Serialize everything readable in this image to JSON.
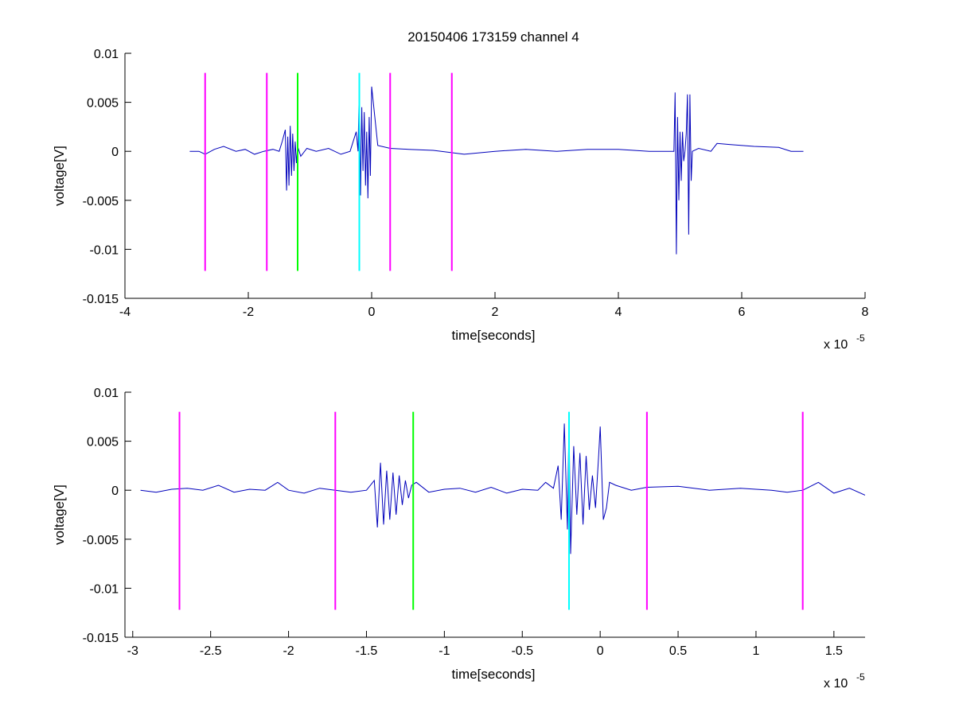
{
  "chart_data": [
    {
      "type": "line",
      "title": "20150406 173159 channel 4",
      "xlabel": "time[seconds]",
      "ylabel": "voltage[V]",
      "x_multiplier": "x 10",
      "x_exponent": "-5",
      "xlim": [
        -4,
        8
      ],
      "ylim": [
        -0.015,
        0.01
      ],
      "xticks": [
        -4,
        -2,
        0,
        2,
        4,
        6,
        8
      ],
      "xtick_labels": [
        "-4",
        "-2",
        "0",
        "2",
        "4",
        "6",
        "8"
      ],
      "yticks": [
        -0.015,
        -0.01,
        -0.005,
        0,
        0.005,
        0.01
      ],
      "ytick_labels": [
        "-0.015",
        "-0.01",
        "-0.005",
        "0",
        "0.005",
        "0.01"
      ],
      "grid": false,
      "series": [
        {
          "color": "#0000bb",
          "x": [
            -2.95,
            -2.8,
            -2.7,
            -2.55,
            -2.4,
            -2.2,
            -2.05,
            -1.9,
            -1.75,
            -1.6,
            -1.5,
            -1.45,
            -1.4,
            -1.38,
            -1.36,
            -1.34,
            -1.32,
            -1.3,
            -1.28,
            -1.26,
            -1.24,
            -1.22,
            -1.2,
            -1.15,
            -1.05,
            -0.9,
            -0.7,
            -0.5,
            -0.35,
            -0.25,
            -0.22,
            -0.2,
            -0.18,
            -0.16,
            -0.14,
            -0.12,
            -0.1,
            -0.08,
            -0.06,
            -0.04,
            -0.02,
            0.0,
            0.1,
            0.3,
            0.6,
            1.0,
            1.5,
            2.0,
            2.5,
            3.0,
            3.5,
            4.0,
            4.5,
            4.8,
            4.9,
            4.92,
            4.94,
            4.96,
            4.98,
            5.0,
            5.02,
            5.04,
            5.06,
            5.08,
            5.1,
            5.12,
            5.14,
            5.16,
            5.18,
            5.2,
            5.3,
            5.5,
            5.6,
            5.8,
            6.2,
            6.6,
            6.8,
            7.0
          ],
          "y": [
            0.0,
            0.0,
            -0.0003,
            0.0002,
            0.0005,
            0.0,
            0.0002,
            -0.0003,
            0.0,
            0.0002,
            0.0,
            0.001,
            0.0022,
            -0.004,
            0.0015,
            -0.0035,
            0.0026,
            -0.0025,
            0.0018,
            -0.002,
            0.001,
            -0.0012,
            0.0005,
            -0.0005,
            0.0003,
            0.0,
            0.0003,
            -0.0003,
            0.0,
            0.002,
            0.0,
            0.0069,
            -0.0045,
            0.0045,
            -0.002,
            0.004,
            -0.0035,
            0.002,
            -0.0048,
            0.0035,
            -0.0025,
            0.0066,
            0.0006,
            0.0003,
            0.0002,
            0.0001,
            -0.0003,
            0.0,
            0.0002,
            0.0,
            0.0002,
            0.0002,
            0.0,
            0.0,
            0.0,
            0.006,
            -0.0105,
            0.0035,
            -0.005,
            0.002,
            -0.003,
            0.002,
            -0.001,
            0.0,
            0.0018,
            0.0058,
            -0.0085,
            0.0058,
            -0.003,
            0.0,
            0.0003,
            0.0,
            0.0008,
            0.0007,
            0.0005,
            0.0004,
            0.0,
            0.0
          ]
        }
      ],
      "markers": [
        {
          "x": -2.7,
          "color": "#ff00ff"
        },
        {
          "x": -1.7,
          "color": "#ff00ff"
        },
        {
          "x": -1.2,
          "color": "#00ff00"
        },
        {
          "x": -0.2,
          "color": "#00ffff"
        },
        {
          "x": 0.3,
          "color": "#ff00ff"
        },
        {
          "x": 1.3,
          "color": "#ff00ff"
        }
      ],
      "marker_range": [
        -0.0122,
        0.008
      ]
    },
    {
      "type": "line",
      "title": "",
      "xlabel": "time[seconds]",
      "ylabel": "voltage[V]",
      "x_multiplier": "x 10",
      "x_exponent": "-5",
      "xlim": [
        -3.05,
        1.7
      ],
      "ylim": [
        -0.015,
        0.01
      ],
      "xticks": [
        -3,
        -2.5,
        -2,
        -1.5,
        -1,
        -0.5,
        0,
        0.5,
        1,
        1.5
      ],
      "xtick_labels": [
        "-3",
        "-2.5",
        "-2",
        "-1.5",
        "-1",
        "-0.5",
        "0",
        "0.5",
        "1",
        "1.5"
      ],
      "yticks": [
        -0.015,
        -0.01,
        -0.005,
        0,
        0.005,
        0.01
      ],
      "ytick_labels": [
        "-0.015",
        "-0.01",
        "-0.005",
        "0",
        "0.005",
        "0.01"
      ],
      "grid": false,
      "series": [
        {
          "color": "#0000bb",
          "x": [
            -2.95,
            -2.85,
            -2.75,
            -2.65,
            -2.55,
            -2.45,
            -2.35,
            -2.25,
            -2.15,
            -2.07,
            -2.0,
            -1.9,
            -1.8,
            -1.7,
            -1.6,
            -1.5,
            -1.45,
            -1.43,
            -1.41,
            -1.39,
            -1.37,
            -1.35,
            -1.33,
            -1.31,
            -1.29,
            -1.27,
            -1.25,
            -1.23,
            -1.21,
            -1.18,
            -1.1,
            -1.0,
            -0.9,
            -0.8,
            -0.7,
            -0.6,
            -0.5,
            -0.4,
            -0.35,
            -0.3,
            -0.27,
            -0.25,
            -0.23,
            -0.21,
            -0.2,
            -0.19,
            -0.17,
            -0.15,
            -0.13,
            -0.11,
            -0.09,
            -0.07,
            -0.05,
            -0.03,
            -0.01,
            0.0,
            0.02,
            0.04,
            0.06,
            0.1,
            0.2,
            0.3,
            0.5,
            0.7,
            0.9,
            1.1,
            1.2,
            1.3,
            1.4,
            1.5,
            1.6,
            1.7
          ],
          "y": [
            0.0,
            -0.0002,
            0.0001,
            0.0002,
            0.0,
            0.0005,
            -0.0002,
            0.0001,
            0.0,
            0.0008,
            0.0,
            -0.0003,
            0.0002,
            0.0,
            -0.0002,
            0.0,
            0.001,
            -0.0038,
            0.0028,
            -0.0035,
            0.002,
            -0.003,
            0.0018,
            -0.0025,
            0.0015,
            -0.0015,
            0.001,
            -0.0008,
            0.0005,
            0.0008,
            -0.0002,
            0.0001,
            0.0002,
            -0.0002,
            0.0003,
            -0.0003,
            0.0001,
            0.0,
            0.0008,
            0.0002,
            0.0025,
            -0.003,
            0.0068,
            -0.004,
            0.0072,
            -0.0065,
            0.0045,
            -0.0025,
            0.0038,
            -0.0035,
            0.0035,
            -0.002,
            0.0015,
            -0.0018,
            0.0035,
            0.0065,
            -0.003,
            -0.0018,
            0.0008,
            0.0005,
            0.0,
            0.0003,
            0.0004,
            0.0,
            0.0002,
            0.0,
            -0.0002,
            0.0,
            0.0008,
            -0.0003,
            0.0002,
            -0.0005
          ]
        }
      ],
      "markers": [
        {
          "x": -2.7,
          "color": "#ff00ff"
        },
        {
          "x": -1.7,
          "color": "#ff00ff"
        },
        {
          "x": -1.2,
          "color": "#00ff00"
        },
        {
          "x": -0.2,
          "color": "#00ffff"
        },
        {
          "x": 0.3,
          "color": "#ff00ff"
        },
        {
          "x": 1.3,
          "color": "#ff00ff"
        }
      ],
      "marker_range": [
        -0.0122,
        0.008
      ]
    }
  ]
}
